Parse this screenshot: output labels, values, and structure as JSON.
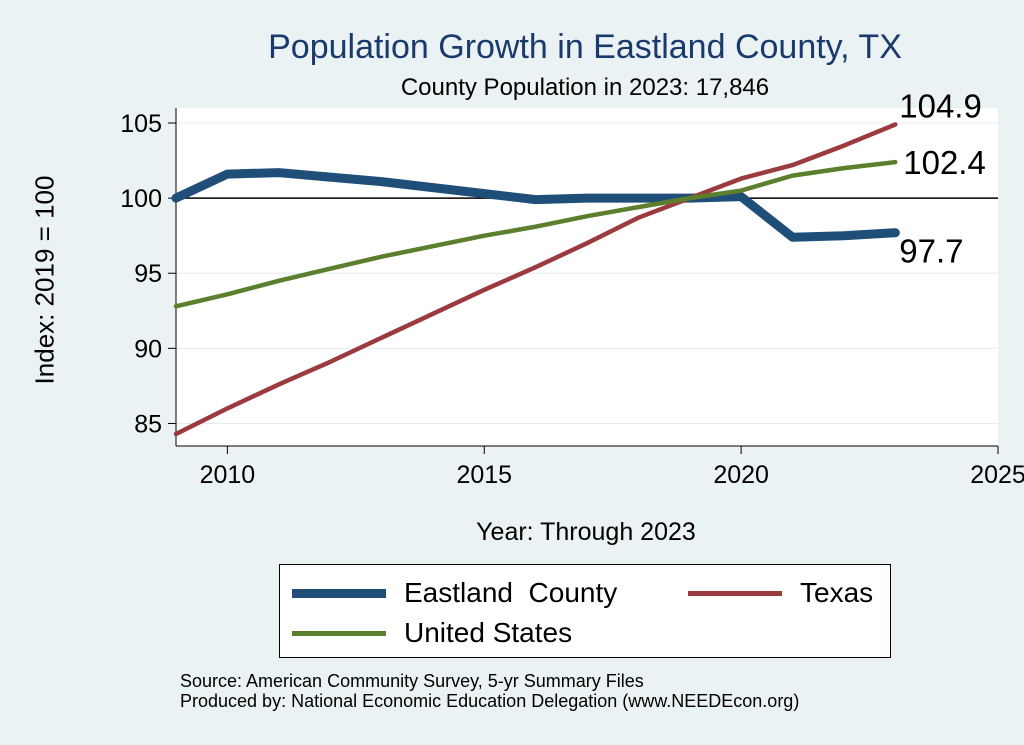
{
  "chart_data": {
    "type": "line",
    "title": "Population Growth in Eastland County, TX",
    "subtitle": "County Population in 2023: 17,846",
    "xlabel": "Year: Through 2023",
    "ylabel": "Index: 2019 = 100",
    "xlim": [
      2009,
      2025
    ],
    "ylim": [
      83.5,
      106
    ],
    "x_ticks": [
      2010,
      2015,
      2020,
      2025
    ],
    "y_ticks": [
      85,
      90,
      95,
      100,
      105
    ],
    "reference_line": 100,
    "grid": true,
    "legend_position": "bottom",
    "x": [
      2009,
      2010,
      2011,
      2012,
      2013,
      2014,
      2015,
      2016,
      2017,
      2018,
      2019,
      2020,
      2021,
      2022,
      2023
    ],
    "series": [
      {
        "name": "Eastland  County",
        "color": "#1f4e79",
        "values": [
          100.0,
          101.6,
          101.7,
          101.4,
          101.1,
          100.7,
          100.3,
          99.9,
          100.0,
          100.0,
          100.0,
          100.1,
          97.4,
          97.5,
          97.7
        ],
        "end_label": "97.7"
      },
      {
        "name": "Texas",
        "color": "#9b3a3f",
        "values": [
          84.3,
          86.0,
          87.6,
          89.1,
          90.7,
          92.3,
          93.9,
          95.4,
          97.0,
          98.7,
          100.0,
          101.3,
          102.2,
          103.5,
          104.9
        ],
        "end_label": "104.9"
      },
      {
        "name": "United States",
        "color": "#5c7f2e",
        "values": [
          92.8,
          93.6,
          94.5,
          95.3,
          96.1,
          96.8,
          97.5,
          98.1,
          98.8,
          99.4,
          100.0,
          100.5,
          101.5,
          102.0,
          102.4
        ],
        "end_label": "102.4"
      }
    ]
  },
  "footer": {
    "source": "Source: American Community Survey, 5-yr Summary Files",
    "produced": "Produced by: National Economic Education Delegation (www.NEEDEcon.org)"
  }
}
